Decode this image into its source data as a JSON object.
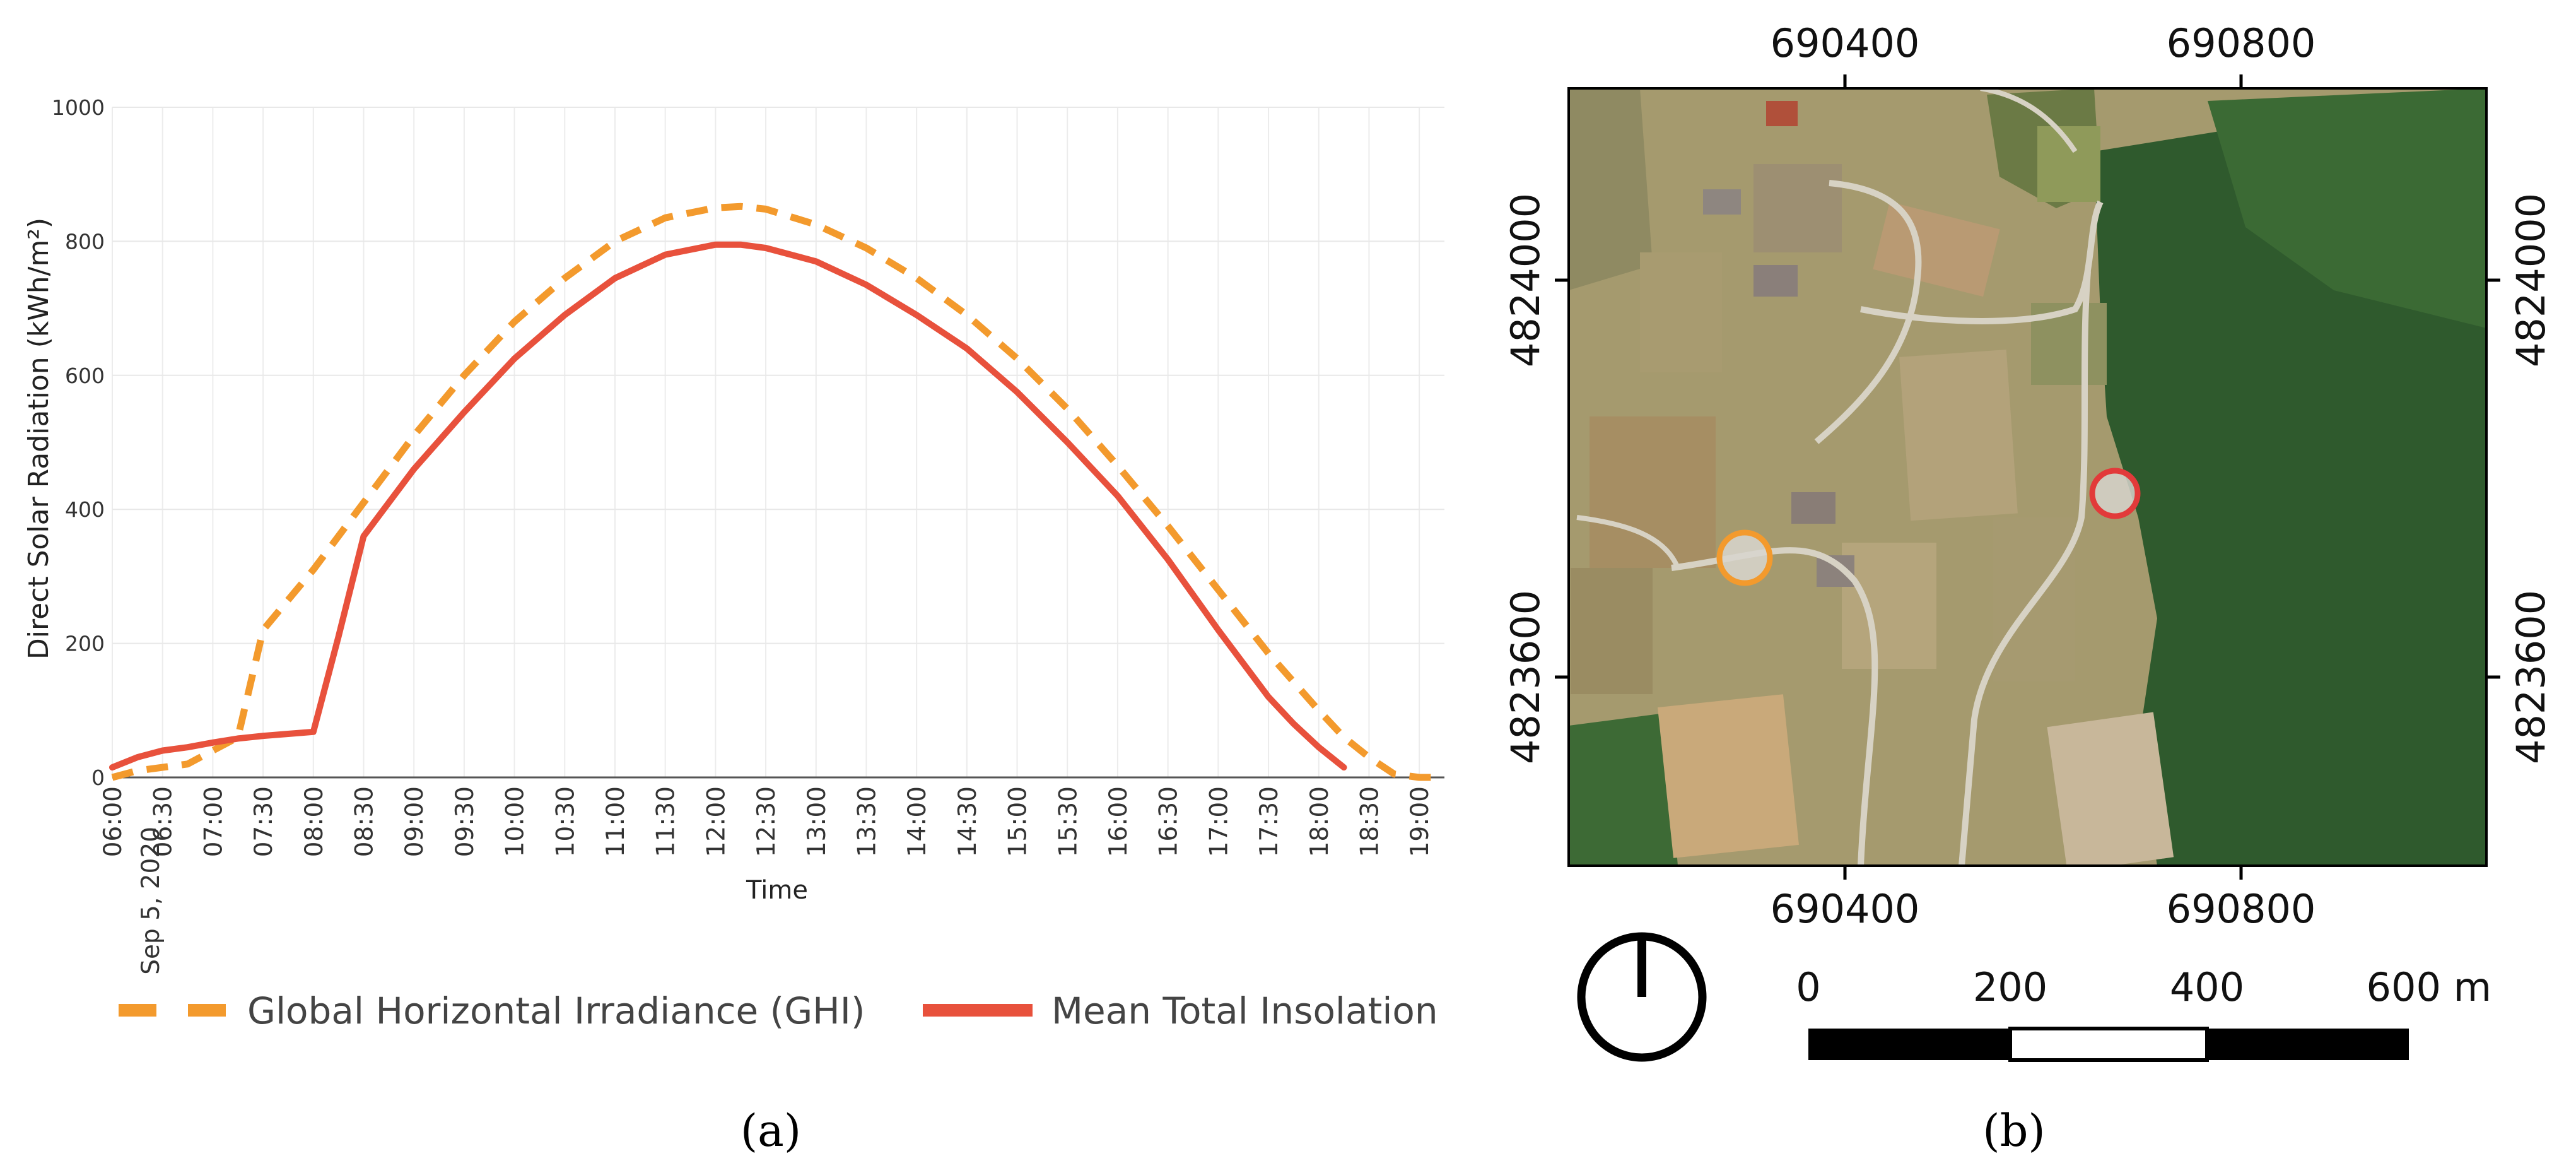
{
  "chart_data": {
    "type": "line",
    "ylabel": "Direct Solar Radiation (kWh/m²)",
    "xlabel": "Time",
    "ylim": [
      0,
      1000
    ],
    "yticks": [
      0,
      200,
      400,
      600,
      800,
      1000
    ],
    "xtick_date": "Sep 5, 2020",
    "xticks": [
      "06:00",
      "06:30",
      "07:00",
      "07:30",
      "08:00",
      "08:30",
      "09:00",
      "09:30",
      "10:00",
      "10:30",
      "11:00",
      "11:30",
      "12:00",
      "12:30",
      "13:00",
      "13:30",
      "14:00",
      "14:30",
      "15:00",
      "15:30",
      "16:00",
      "16:30",
      "17:00",
      "17:30",
      "18:00",
      "18:30",
      "19:00"
    ],
    "x_unit": "hours",
    "xlim": [
      6.0,
      19.25
    ],
    "grid": true,
    "legend_position": "bottom",
    "series": [
      {
        "name": "Global Horizontal Irradiance (GHI)",
        "style": "dashed",
        "color": "#f39a2d",
        "x": [
          6.0,
          6.25,
          6.5,
          6.75,
          7.0,
          7.25,
          7.5,
          7.75,
          8.0,
          8.5,
          9.0,
          9.5,
          10.0,
          10.5,
          11.0,
          11.5,
          12.0,
          12.25,
          12.5,
          13.0,
          13.5,
          14.0,
          14.5,
          15.0,
          15.5,
          16.0,
          16.5,
          17.0,
          17.5,
          18.0,
          18.25,
          18.5,
          18.75,
          19.0,
          19.25
        ],
        "y": [
          0,
          10,
          15,
          20,
          40,
          60,
          220,
          265,
          310,
          410,
          510,
          600,
          680,
          745,
          800,
          835,
          850,
          852,
          848,
          825,
          790,
          745,
          690,
          625,
          550,
          465,
          375,
          280,
          185,
          100,
          60,
          30,
          5,
          0,
          0
        ]
      },
      {
        "name": "Mean Total Insolation",
        "style": "solid",
        "color": "#e8513c",
        "x": [
          6.0,
          6.25,
          6.5,
          6.75,
          7.0,
          7.25,
          7.5,
          7.75,
          8.0,
          8.25,
          8.5,
          9.0,
          9.5,
          10.0,
          10.5,
          11.0,
          11.5,
          12.0,
          12.25,
          12.5,
          13.0,
          13.5,
          14.0,
          14.5,
          15.0,
          15.5,
          16.0,
          16.5,
          17.0,
          17.5,
          17.75,
          18.0,
          18.25
        ],
        "y": [
          15,
          30,
          40,
          45,
          52,
          58,
          62,
          65,
          68,
          210,
          360,
          460,
          545,
          625,
          690,
          745,
          780,
          795,
          795,
          790,
          770,
          735,
          690,
          640,
          575,
          500,
          420,
          325,
          220,
          120,
          80,
          45,
          15
        ]
      }
    ]
  },
  "map": {
    "x_ticks_top": [
      "690400",
      "690800"
    ],
    "x_ticks_bottom": [
      "690400",
      "690800"
    ],
    "y_ticks_left": [
      "4824000",
      "4823600"
    ],
    "y_ticks_right": [
      "4824000",
      "4823600"
    ],
    "markers": [
      {
        "name": "orange-site",
        "color": "#f39a2d"
      },
      {
        "name": "red-site",
        "color": "#e23a3a"
      }
    ],
    "scale_labels": [
      "0",
      "200",
      "400",
      "600 m"
    ],
    "north_arrow": "north-arrow-icon"
  },
  "panel_labels": {
    "a": "(a)",
    "b": "(b)"
  }
}
